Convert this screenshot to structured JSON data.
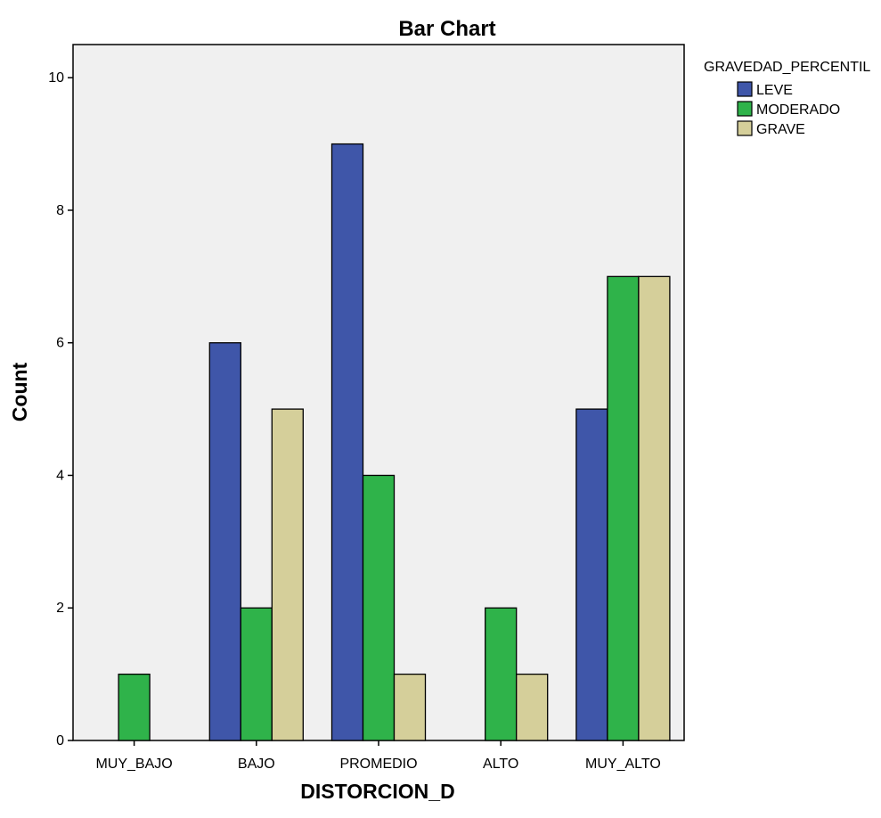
{
  "chart_data": {
    "type": "bar",
    "title": "Bar Chart",
    "xlabel": "DISTORCION_D",
    "ylabel": "Count",
    "categories": [
      "MUY_BAJO",
      "BAJO",
      "PROMEDIO",
      "ALTO",
      "MUY_ALTO"
    ],
    "series": [
      {
        "name": "LEVE",
        "color": "#3f56a9",
        "values": [
          0,
          6,
          9,
          0,
          5
        ]
      },
      {
        "name": "MODERADO",
        "color": "#2fb34a",
        "values": [
          1,
          2,
          4,
          2,
          7
        ]
      },
      {
        "name": "GRAVE",
        "color": "#d5cf9a",
        "values": [
          0,
          5,
          1,
          1,
          7
        ]
      }
    ],
    "ylim": [
      0,
      10.5
    ],
    "yticks": [
      0,
      2,
      4,
      6,
      8,
      10
    ],
    "grid": false,
    "legend": {
      "title": "GRAVEDAD_PERCENTIL",
      "placement": "top-right, outside plot"
    },
    "plot_background": "#f0f0f0"
  }
}
